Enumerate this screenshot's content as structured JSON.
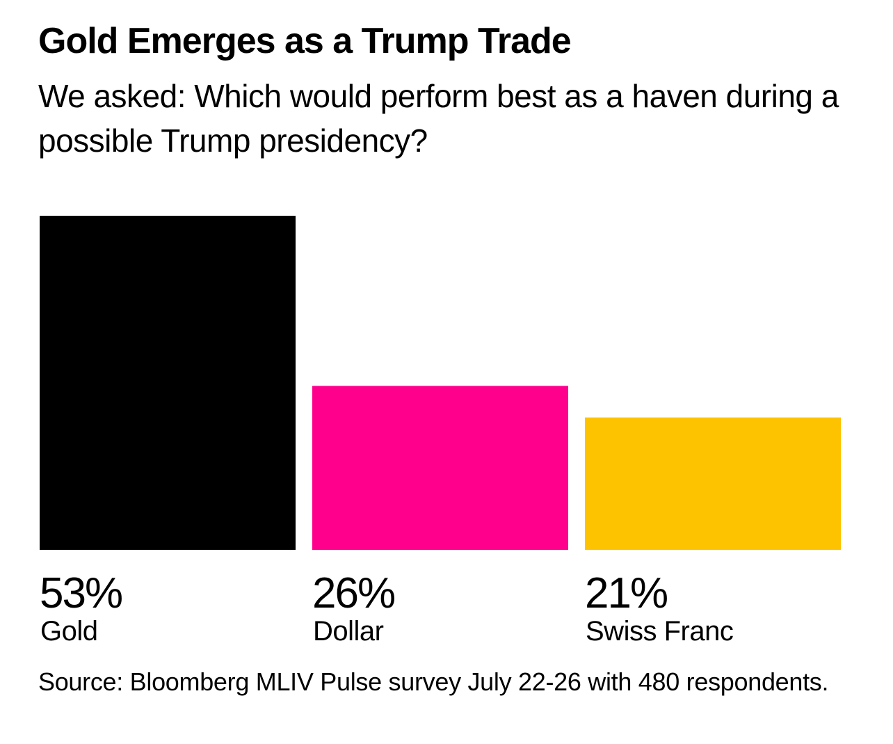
{
  "chart_data": {
    "type": "bar",
    "title": "Gold Emerges as a Trump Trade",
    "subtitle": "We asked: Which would perform best as a haven during a possible Trump presidency?",
    "categories": [
      "Gold",
      "Dollar",
      "Swiss Franc"
    ],
    "values": [
      53,
      26,
      21
    ],
    "value_labels": [
      "53%",
      "26%",
      "21%"
    ],
    "colors": [
      "#000000",
      "#ff008c",
      "#fdc300"
    ],
    "unit": "%",
    "xlabel": "",
    "ylabel": "",
    "ylim": [
      0,
      53
    ],
    "grid": false,
    "legend": "none",
    "source": "Source: Bloomberg MLIV Pulse survey July 22-26 with 480 respondents."
  }
}
